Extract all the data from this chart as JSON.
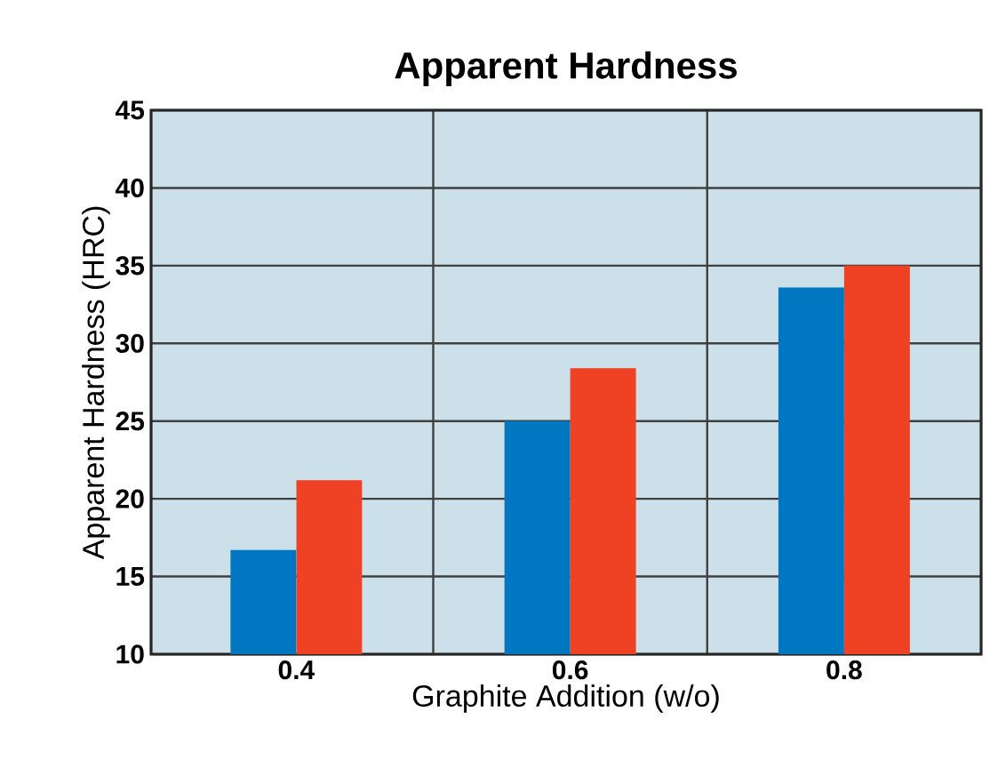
{
  "chart_data": {
    "type": "bar",
    "title": "Apparent Hardness",
    "xlabel": "Graphite Addition (w/o)",
    "ylabel": "Apparent Hardness (HRC)",
    "categories": [
      "0.4",
      "0.6",
      "0.8"
    ],
    "series": [
      {
        "color": "#0077c0",
        "values": [
          16.7,
          25.0,
          33.6
        ]
      },
      {
        "color": "#ef4123",
        "values": [
          21.2,
          28.4,
          35.0
        ]
      }
    ],
    "ylim": [
      10,
      45
    ],
    "yticks": [
      10,
      15,
      20,
      25,
      30,
      35,
      40,
      45
    ],
    "grid": true
  }
}
